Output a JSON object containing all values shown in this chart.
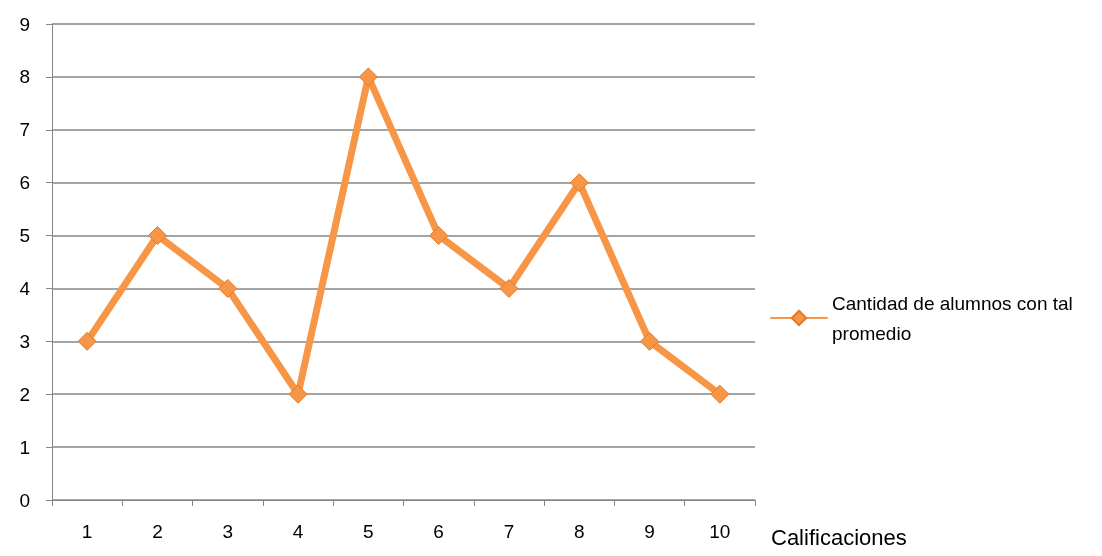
{
  "chart_data": {
    "type": "line",
    "xlabel": "Calificaciones",
    "categories": [
      "1",
      "2",
      "3",
      "4",
      "5",
      "6",
      "7",
      "8",
      "9",
      "10"
    ],
    "series": [
      {
        "name": "Cantidad de alumnos con tal promedio",
        "color": "#f79646",
        "values": [
          3,
          5,
          4,
          2,
          8,
          5,
          4,
          6,
          3,
          2
        ]
      }
    ],
    "ylim": [
      0,
      9
    ],
    "yticks": [
      0,
      1,
      2,
      3,
      4,
      5,
      6,
      7,
      8,
      9
    ],
    "grid": "y",
    "legend": "right",
    "marker": "diamond",
    "line_style": "solid"
  }
}
